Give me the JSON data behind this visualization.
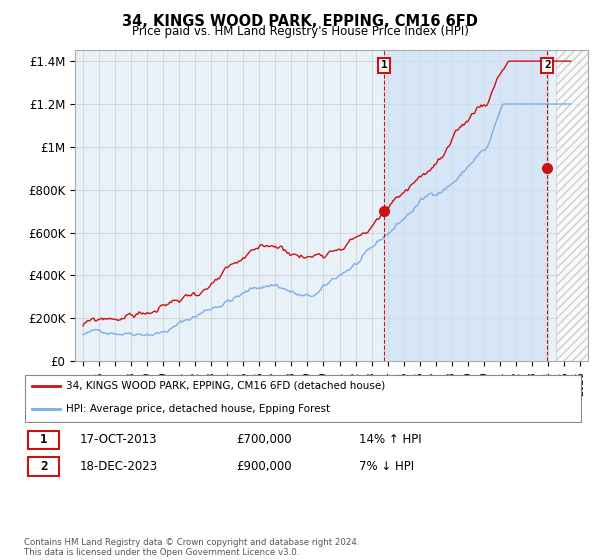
{
  "title": "34, KINGS WOOD PARK, EPPING, CM16 6FD",
  "subtitle": "Price paid vs. HM Land Registry's House Price Index (HPI)",
  "ylabel_ticks": [
    "£0",
    "£200K",
    "£400K",
    "£600K",
    "£800K",
    "£1M",
    "£1.2M",
    "£1.4M"
  ],
  "ytick_values": [
    0,
    200000,
    400000,
    600000,
    800000,
    1000000,
    1200000,
    1400000
  ],
  "ylim": [
    0,
    1450000
  ],
  "xlim_start": 1994.5,
  "xlim_end": 2026.5,
  "hpi_color": "#7aaee8",
  "price_color": "#cc1111",
  "vline1_x": 2013.79,
  "vline2_x": 2023.96,
  "hatch_start": 2024.5,
  "shade_start": 2013.79,
  "shade_end": 2023.96,
  "shade_color": "#ddeeff",
  "legend_label_red": "34, KINGS WOOD PARK, EPPING, CM16 6FD (detached house)",
  "legend_label_blue": "HPI: Average price, detached house, Epping Forest",
  "note1_date": "17-OCT-2013",
  "note1_price": "£700,000",
  "note1_hpi": "14% ↑ HPI",
  "note2_date": "18-DEC-2023",
  "note2_price": "£900,000",
  "note2_hpi": "7% ↓ HPI",
  "footer": "Contains HM Land Registry data © Crown copyright and database right 2024.\nThis data is licensed under the Open Government Licence v3.0.",
  "background_color": "#ffffff",
  "grid_color": "#cccccc",
  "plot_bg_color": "#e8f0f8"
}
